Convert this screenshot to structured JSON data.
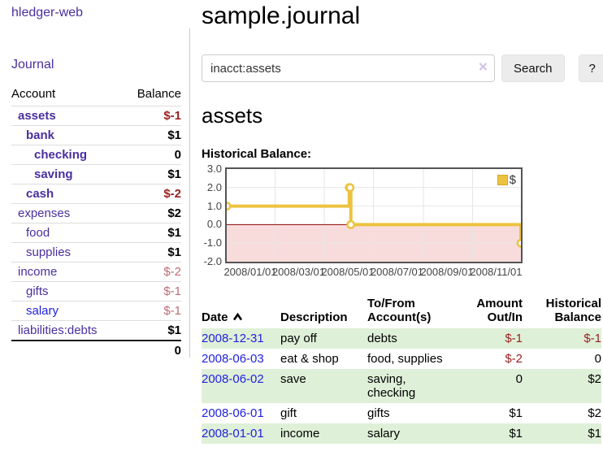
{
  "header": {
    "title": "sample.journal"
  },
  "search": {
    "value": "inacct:assets",
    "button_label": "Search",
    "help_label": "?",
    "clear_icon": "×"
  },
  "sidebar": {
    "brand": "hledger-web",
    "journal_link": "Journal",
    "accounts": {
      "headers": {
        "account": "Account",
        "balance": "Balance"
      },
      "rows": [
        {
          "name": "assets",
          "level": 0,
          "bold": true,
          "balance": "$-1",
          "balance_style": "neg"
        },
        {
          "name": "bank",
          "level": 1,
          "bold": true,
          "balance": "$1",
          "balance_style": "pos"
        },
        {
          "name": "checking",
          "level": 2,
          "bold": true,
          "balance": "0",
          "balance_style": "pos"
        },
        {
          "name": "saving",
          "level": 2,
          "bold": true,
          "balance": "$1",
          "balance_style": "pos"
        },
        {
          "name": "cash",
          "level": 1,
          "bold": true,
          "balance": "$-2",
          "balance_style": "neg"
        },
        {
          "name": "expenses",
          "level": 0,
          "bold": false,
          "balance": "$2",
          "balance_style": "pos"
        },
        {
          "name": "food",
          "level": 1,
          "bold": false,
          "balance": "$1",
          "balance_style": "pos"
        },
        {
          "name": "supplies",
          "level": 1,
          "bold": false,
          "balance": "$1",
          "balance_style": "pos"
        },
        {
          "name": "income",
          "level": 0,
          "bold": false,
          "balance": "$-2",
          "balance_style": "rose"
        },
        {
          "name": "gifts",
          "level": 1,
          "bold": false,
          "balance": "$-1",
          "balance_style": "rose"
        },
        {
          "name": "salary",
          "level": 1,
          "bold": false,
          "balance": "$-1",
          "balance_style": "rose",
          "link_style": "blue"
        },
        {
          "name": "liabilities:debts",
          "level": 0,
          "bold": false,
          "balance": "$1",
          "balance_style": "pos"
        }
      ],
      "total": "0"
    }
  },
  "account_page": {
    "title": "assets"
  },
  "chart_data": {
    "type": "line",
    "steps": true,
    "title": "Historical Balance:",
    "series": [
      {
        "name": "$",
        "color": "#EDC240",
        "points": [
          [
            "2008-01-01",
            1
          ],
          [
            "2008-06-01",
            2
          ],
          [
            "2008-06-02",
            2
          ],
          [
            "2008-06-03",
            0
          ],
          [
            "2008-12-31",
            -1
          ]
        ]
      }
    ],
    "xlim": [
      "2008-01-01",
      "2008-12-31"
    ],
    "ylim": [
      -2,
      3
    ],
    "x_ticks": [
      "2008/01/01",
      "2008/03/01",
      "2008/05/01",
      "2008/07/01",
      "2008/09/01",
      "2008/11/01"
    ],
    "y_ticks": [
      3.0,
      2.0,
      1.0,
      0.0,
      -1.0,
      -2.0
    ],
    "legend": {
      "label": "$",
      "position": "top-right"
    },
    "grid": true,
    "colors": {
      "border": "#545454",
      "gridline": "#e6e6e6",
      "zero_line": "#8b0000",
      "negative_region": "#f8dcdc",
      "series": "#EDC240"
    }
  },
  "transactions": {
    "headers": [
      {
        "lines": [
          "Date"
        ],
        "align": "left",
        "sort": "asc"
      },
      {
        "lines": [
          "Description"
        ],
        "align": "left"
      },
      {
        "lines": [
          "To/From",
          "Account(s)"
        ],
        "align": "left"
      },
      {
        "lines": [
          "Amount",
          "Out/In"
        ],
        "align": "right"
      },
      {
        "lines": [
          "Historical",
          "Balance"
        ],
        "align": "right"
      }
    ],
    "rows": [
      {
        "date": "2008-12-31",
        "description": "pay off",
        "accounts": "debts",
        "amount": "$-1",
        "amount_style": "neg",
        "balance": "$-1",
        "balance_style": "neg",
        "highlight": true
      },
      {
        "date": "2008-06-03",
        "description": "eat & shop",
        "accounts": "food, supplies",
        "amount": "$-2",
        "amount_style": "neg",
        "balance": "0",
        "balance_style": "pos",
        "highlight": false
      },
      {
        "date": "2008-06-02",
        "description": "save",
        "accounts": "saving, checking",
        "amount": "0",
        "amount_style": "pos",
        "balance": "$2",
        "balance_style": "pos",
        "highlight": true
      },
      {
        "date": "2008-06-01",
        "description": "gift",
        "accounts": "gifts",
        "amount": "$1",
        "amount_style": "pos",
        "balance": "$2",
        "balance_style": "pos",
        "highlight": false
      },
      {
        "date": "2008-01-01",
        "description": "income",
        "accounts": "salary",
        "amount": "$1",
        "amount_style": "pos",
        "balance": "$1",
        "balance_style": "pos",
        "highlight": true
      }
    ]
  },
  "colors": {
    "accent_purple": "#4a2f9f",
    "link_blue": "#2222dd",
    "negative_red": "#9b1f1f",
    "muted_negative": "#bd6b76",
    "row_highlight_green": "#dff0d8"
  }
}
